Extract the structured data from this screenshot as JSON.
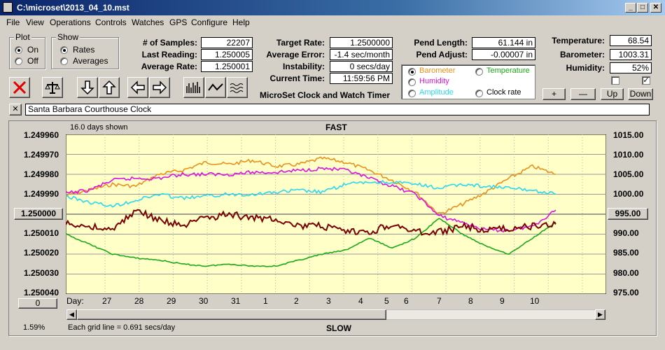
{
  "window": {
    "title": "C:\\microset\\2013_04_10.mst"
  },
  "menu": [
    "File",
    "View",
    "Operations",
    "Controls",
    "Watches",
    "GPS",
    "Configure",
    "Help"
  ],
  "plot_group": {
    "title": "Plot",
    "on": "On",
    "off": "Off"
  },
  "show_group": {
    "title": "Show",
    "rates": "Rates",
    "averages": "Averages"
  },
  "stats": {
    "samples_label": "# of Samples:",
    "samples": "22207",
    "last_reading_label": "Last Reading:",
    "last_reading": "1.250005",
    "average_rate_label": "Average Rate:",
    "average_rate": "1.250001"
  },
  "rates": {
    "target_rate_label": "Target Rate:",
    "target_rate": "1.2500000",
    "average_error_label": "Average Error:",
    "average_error": "-1.4 sec/month",
    "instability_label": "Instability:",
    "instability": "0 secs/day",
    "current_time_label": "Current Time:",
    "current_time": "11:59:56 PM"
  },
  "pend": {
    "length_label": "Pend Length:",
    "length": "61.144 in",
    "adjust_label": "Pend Adjust:",
    "adjust": "-0.00007 in"
  },
  "env": {
    "temperature_label": "Temperature:",
    "temperature": "68.54",
    "barometer_label": "Barometer:",
    "barometer": "1003.31",
    "humidity_label": "Humidity:",
    "humidity": "52%"
  },
  "series_select": {
    "barometer": "Barometer",
    "temperature": "Temperature",
    "humidity": "Humidity",
    "amplitude": "Amplitude",
    "clock_rate": "Clock rate"
  },
  "scale_buttons": {
    "plus": "+",
    "minus": "—",
    "up": "Up",
    "down": "Down"
  },
  "app_title": "MicroSet Clock and Watch Timer",
  "clock_name": "Santa Barbara Courthouse Clock",
  "close_x": "✕",
  "colors": {
    "chart_bg": "#ffffc8",
    "barometer": "#e8901e",
    "humidity": "#e010e0",
    "amplitude": "#28d8f0",
    "temperature": "#18a818",
    "clock_rate": "#7a0000"
  },
  "chart": {
    "days_shown": "16.0 days shown",
    "fast": "FAST",
    "slow": "SLOW",
    "grid_note": "Each grid line = 0.691 secs/day",
    "percent": "1.59%",
    "left_button": "1.250000",
    "right_button": "995.00",
    "zero_button": "0",
    "day_label": "Day:"
  },
  "chart_data": {
    "type": "line",
    "title": "",
    "xlabel": "Day:",
    "x_ticks": [
      "27",
      "28",
      "29",
      "30",
      "31",
      "1",
      "2",
      "3",
      "4",
      "5",
      "6",
      "7",
      "8",
      "9",
      "10"
    ],
    "y_left_ticks": [
      "1.249960",
      "1.249970",
      "1.249980",
      "1.249990",
      "1.250000",
      "1.250010",
      "1.250020",
      "1.250030",
      "1.250040"
    ],
    "y_right_ticks": [
      "1015.00",
      "1010.00",
      "1005.00",
      "1000.00",
      "995.00",
      "990.00",
      "985.00",
      "980.00",
      "975.00"
    ],
    "y_left_range": [
      1.24996,
      1.25004
    ],
    "y_left_inverted": true,
    "y_right_range": [
      975,
      1015
    ],
    "grid": true,
    "series": [
      {
        "name": "Barometer",
        "color": "#e8901e",
        "values": [
          1.2499905,
          1.249988,
          1.249985,
          1.249986,
          1.24998,
          1.249978,
          1.249974,
          1.249975,
          1.249973,
          1.249976,
          1.249975,
          1.249972,
          1.249974,
          1.249978,
          1.249983,
          1.249989,
          1.25,
          1.249995,
          1.249989,
          1.249982,
          1.249976,
          1.24998
        ]
      },
      {
        "name": "Humidity",
        "color": "#e010e0",
        "values": [
          1.2499895,
          1.249988,
          1.249983,
          1.249982,
          1.249982,
          1.24998,
          1.24998,
          1.24998,
          1.249979,
          1.249979,
          1.249978,
          1.249977,
          1.249978,
          1.249982,
          1.249986,
          1.24999,
          1.250001,
          1.250004,
          1.250008,
          1.250008,
          1.250006,
          1.249998
        ]
      },
      {
        "name": "Amplitude",
        "color": "#28d8f0",
        "values": [
          1.249991,
          1.249994,
          1.249996,
          1.249993,
          1.24999,
          1.249992,
          1.249991,
          1.24999,
          1.24999,
          1.249989,
          1.249988,
          1.249989,
          1.249985,
          1.249984,
          1.249984,
          1.249985,
          1.249987,
          1.249985,
          1.249986,
          1.249987,
          1.249988,
          1.24999
        ]
      },
      {
        "name": "Temperature",
        "color": "#18a818",
        "values": [
          1.25001,
          1.250015,
          1.25002,
          1.250022,
          1.250023,
          1.250025,
          1.250026,
          1.250025,
          1.250026,
          1.250026,
          1.250023,
          1.25002,
          1.250018,
          1.250012,
          1.250017,
          1.250012,
          1.250002,
          1.25001,
          1.250016,
          1.25002,
          1.250012,
          1.250004
        ]
      },
      {
        "name": "Clock rate",
        "color": "#7a0000",
        "values": [
          1.250005,
          1.250006,
          1.250008,
          1.249998,
          1.250003,
          1.250006,
          1.250002,
          1.25,
          1.250002,
          1.250002,
          1.250006,
          1.250006,
          1.250009,
          1.250009,
          1.250005,
          1.250009,
          1.250009,
          1.250006,
          1.250008,
          1.250007,
          1.250006,
          1.250005
        ]
      }
    ]
  }
}
